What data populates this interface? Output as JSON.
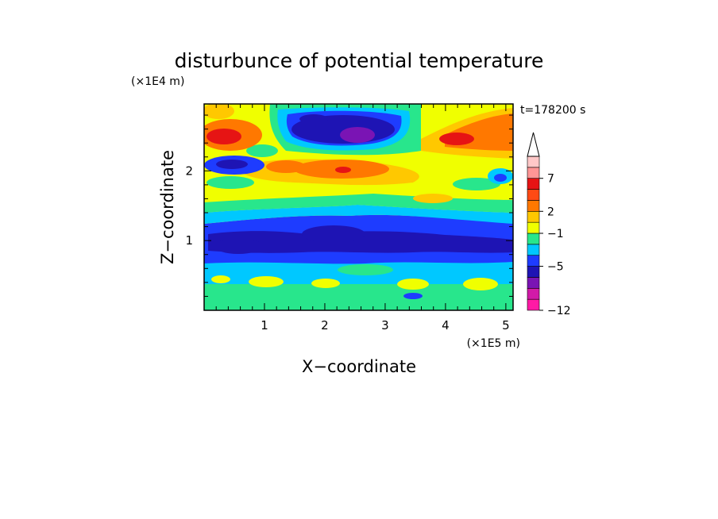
{
  "chart_data": {
    "type": "heatmap",
    "title": "disturbunce of potential temperature",
    "xlabel": "X−coordinate",
    "ylabel": "Z−coordinate",
    "x_scale_label": "(×1E5 m)",
    "y_scale_label": "(×1E4 m)",
    "time_label": "t=178200 s",
    "xlim": [
      0,
      5.12
    ],
    "ylim": [
      0,
      2.96
    ],
    "x_ticks": [
      "1",
      "2",
      "3",
      "4",
      "5"
    ],
    "y_ticks": [
      "1",
      "2"
    ],
    "colorbar": {
      "colors": [
        "#ff1aa5",
        "#d21aa8",
        "#7a14b4",
        "#1e14b4",
        "#1e3cff",
        "#00c8ff",
        "#28e68c",
        "#f0ff00",
        "#ffc800",
        "#ff7800",
        "#ff4a14",
        "#e61414",
        "#ff9696",
        "#ffc8c8"
      ],
      "tick_labels": [
        "−12",
        "−5",
        "−1",
        "2",
        "7"
      ],
      "extend": "max"
    }
  }
}
